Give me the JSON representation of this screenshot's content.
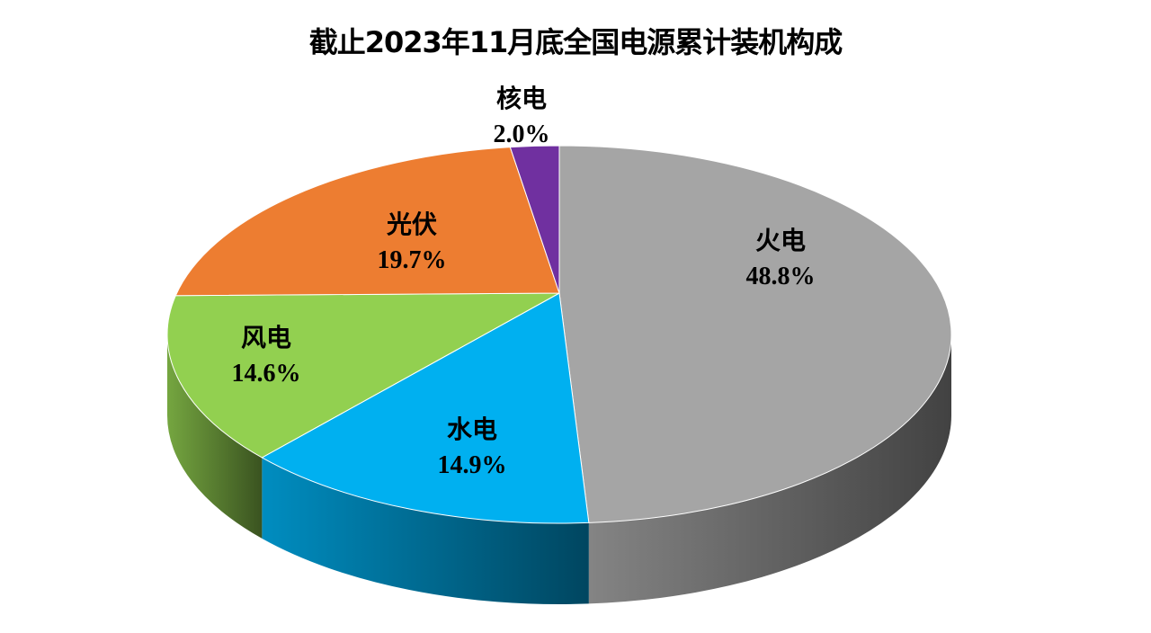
{
  "chart_data": {
    "type": "pie",
    "style": "3d",
    "title": "截止2023年11月底全国电源累计装机构成",
    "start_angle": "12 o'clock",
    "direction": "clockwise",
    "slices": [
      {
        "label": "火电",
        "value": 48.8,
        "display": "48.8%",
        "color": "#a5a5a5"
      },
      {
        "label": "水电",
        "value": 14.9,
        "display": "14.9%",
        "color": "#00b0f0"
      },
      {
        "label": "风电",
        "value": 14.6,
        "display": "14.6%",
        "color": "#92d050"
      },
      {
        "label": "光伏",
        "value": 19.7,
        "display": "19.7%",
        "color": "#ed7d31"
      },
      {
        "label": "核电",
        "value": 2.0,
        "display": "2.0%",
        "color": "#7030a0"
      }
    ],
    "legend": "none"
  }
}
